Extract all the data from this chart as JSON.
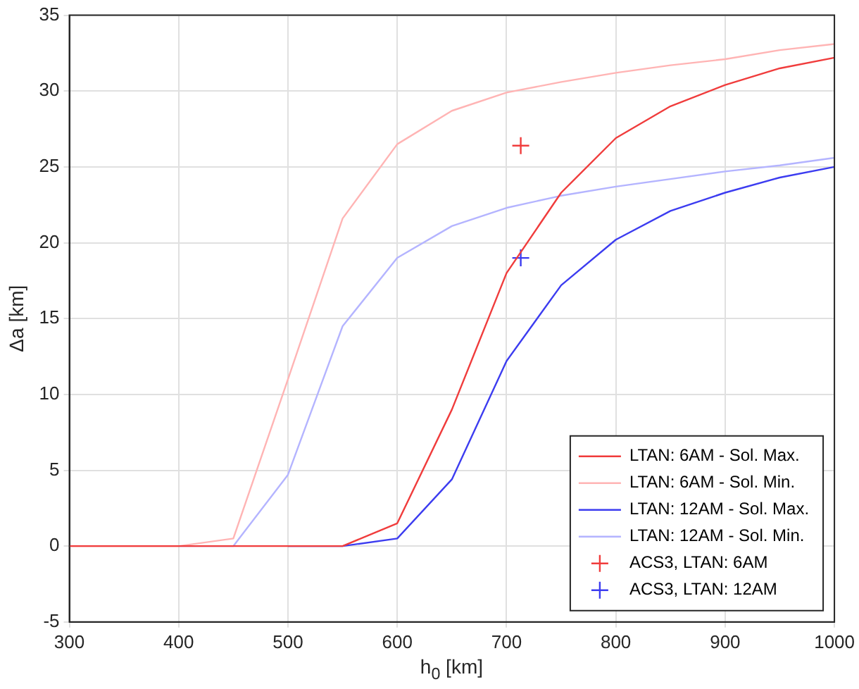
{
  "chart_data": {
    "type": "line",
    "xlabel": "h$_{0}$ [km]",
    "ylabel": "Δa [km]",
    "x": [
      300,
      350,
      400,
      450,
      500,
      550,
      600,
      650,
      700,
      750,
      800,
      850,
      900,
      950,
      1000
    ],
    "series": [
      {
        "name": "LTAN: 6AM - Sol. Max.",
        "color": "#f03c3c",
        "values": [
          0,
          0,
          0,
          0,
          0,
          0,
          1.5,
          9,
          18,
          23.3,
          26.9,
          29,
          30.4,
          31.5,
          32.2
        ]
      },
      {
        "name": "LTAN: 6AM - Sol. Min.",
        "color": "#ffb4b4",
        "values": [
          0,
          0,
          0,
          0.5,
          11,
          21.6,
          26.5,
          28.7,
          29.9,
          30.6,
          31.2,
          31.7,
          32.1,
          32.7,
          33.1
        ]
      },
      {
        "name": "LTAN: 12AM - Sol. Max.",
        "color": "#3c3cf0",
        "values": [
          null,
          null,
          null,
          null,
          0,
          0,
          0.5,
          4.4,
          12.2,
          17.2,
          20.2,
          22.1,
          23.3,
          24.3,
          25
        ]
      },
      {
        "name": "LTAN: 12AM - Sol. Min.",
        "color": "#b4b4ff",
        "values": [
          null,
          null,
          0,
          0,
          4.7,
          14.5,
          19,
          21.1,
          22.3,
          23.1,
          23.7,
          24.2,
          24.7,
          25.1,
          25.6
        ]
      },
      {
        "name": "ACS3, LTAN: 6AM",
        "type": "scatter",
        "marker": "cross",
        "color": "#f03c3c",
        "x": [
          713
        ],
        "values": [
          26.4
        ]
      },
      {
        "name": "ACS3, LTAN: 12AM",
        "type": "scatter",
        "marker": "cross",
        "color": "#3c3cf0",
        "x": [
          713
        ],
        "values": [
          19
        ]
      }
    ],
    "xlim": [
      300,
      1000
    ],
    "xticks": [
      300,
      400,
      500,
      600,
      700,
      800,
      900,
      1000
    ],
    "ylim": [
      -5,
      35
    ],
    "yticks": [
      -5,
      0,
      5,
      10,
      15,
      20,
      25,
      30,
      35
    ],
    "grid": true,
    "legend": "bottom right",
    "marker": "none"
  }
}
